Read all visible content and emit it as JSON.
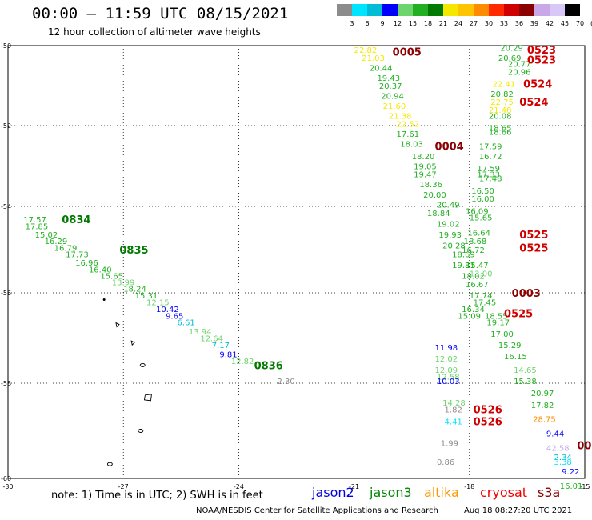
{
  "header": {
    "title": "00:00 – 11:59 UTC 08/15/2021",
    "subtitle": "12 hour collection of altimeter wave heights"
  },
  "color_scale": {
    "labels": [
      "3",
      "6",
      "9",
      "12",
      "15",
      "18",
      "21",
      "24",
      "27",
      "30",
      "33",
      "36",
      "39",
      "42",
      "45",
      "70",
      "(ft)"
    ],
    "colors": [
      "#8c8c8c",
      "#00e5ff",
      "#00bcd4",
      "#0000ff",
      "#6ed46e",
      "#22b022",
      "#007a00",
      "#f5e800",
      "#ffc400",
      "#ff8c00",
      "#ff2a00",
      "#d00000",
      "#8b0000",
      "#c9a8e8",
      "#d8c8f8",
      "#000000"
    ]
  },
  "map": {
    "lat_labels": [
      "-50",
      "-52",
      "-54",
      "-56",
      "-58",
      "-60"
    ],
    "lon_labels": [
      "-30",
      "-27",
      "-24",
      "-21",
      "-18",
      "-15"
    ]
  },
  "passes": [
    {
      "label": "0834",
      "color": "#007a00",
      "lon": -28.6,
      "lat": -54.3
    },
    {
      "label": "0835",
      "color": "#007a00",
      "lon": -27.1,
      "lat": -55.0
    },
    {
      "label": "0836",
      "color": "#007a00",
      "lon": -23.6,
      "lat": -57.6
    },
    {
      "label": "0005",
      "color": "#8b0000",
      "lon": -20.0,
      "lat": -50.15
    },
    {
      "label": "0004",
      "color": "#8b0000",
      "lon": -18.9,
      "lat": -52.5
    },
    {
      "label": "0523",
      "color": "#d00000",
      "lon": -16.5,
      "lat": -50.1
    },
    {
      "label": "0523",
      "color": "#d00000",
      "lon": -16.5,
      "lat": -50.35
    },
    {
      "label": "0524",
      "color": "#d00000",
      "lon": -16.6,
      "lat": -50.95
    },
    {
      "label": "0524",
      "color": "#d00000",
      "lon": -16.7,
      "lat": -51.4
    },
    {
      "label": "0525",
      "color": "#d00000",
      "lon": -16.7,
      "lat": -54.65
    },
    {
      "label": "0525",
      "color": "#d00000",
      "lon": -16.7,
      "lat": -54.95
    },
    {
      "label": "0003",
      "color": "#8b0000",
      "lon": -16.9,
      "lat": -56.0
    },
    {
      "label": "0525",
      "color": "#d00000",
      "lon": -17.1,
      "lat": -56.45
    },
    {
      "label": "0526",
      "color": "#d00000",
      "lon": -17.9,
      "lat": -58.55
    },
    {
      "label": "0526",
      "color": "#d00000",
      "lon": -17.9,
      "lat": -58.8
    },
    {
      "label": "00",
      "color": "#8b0000",
      "lon": -15.2,
      "lat": -59.3
    }
  ],
  "observations": [
    {
      "v": "17.57",
      "c": "#22b022",
      "lon": -29.6,
      "lat": -54.3
    },
    {
      "v": "17.85",
      "c": "#22b022",
      "lon": -29.55,
      "lat": -54.45
    },
    {
      "v": "15.02",
      "c": "#22b022",
      "lon": -29.3,
      "lat": -54.65
    },
    {
      "v": "16.29",
      "c": "#22b022",
      "lon": -29.05,
      "lat": -54.8
    },
    {
      "v": "16.79",
      "c": "#22b022",
      "lon": -28.8,
      "lat": -54.95
    },
    {
      "v": "17.73",
      "c": "#22b022",
      "lon": -28.5,
      "lat": -55.1
    },
    {
      "v": "16.96",
      "c": "#22b022",
      "lon": -28.25,
      "lat": -55.3
    },
    {
      "v": "16.40",
      "c": "#22b022",
      "lon": -27.9,
      "lat": -55.45
    },
    {
      "v": "15.65",
      "c": "#22b022",
      "lon": -27.6,
      "lat": -55.6
    },
    {
      "v": "13.99",
      "c": "#6ed46e",
      "lon": -27.3,
      "lat": -55.75
    },
    {
      "v": "18.24",
      "c": "#22b022",
      "lon": -27.0,
      "lat": -55.9
    },
    {
      "v": "15.31",
      "c": "#22b022",
      "lon": -26.7,
      "lat": -56.05
    },
    {
      "v": "12.15",
      "c": "#6ed46e",
      "lon": -26.4,
      "lat": -56.2
    },
    {
      "v": "10.42",
      "c": "#0000ff",
      "lon": -26.15,
      "lat": -56.35
    },
    {
      "v": "9.65",
      "c": "#0000ff",
      "lon": -25.9,
      "lat": -56.5
    },
    {
      "v": "6.61",
      "c": "#00bcd4",
      "lon": -25.6,
      "lat": -56.65
    },
    {
      "v": "13.94",
      "c": "#6ed46e",
      "lon": -25.3,
      "lat": -56.85
    },
    {
      "v": "12.64",
      "c": "#6ed46e",
      "lon": -25.0,
      "lat": -57.0
    },
    {
      "v": "7.17",
      "c": "#00bcd4",
      "lon": -24.7,
      "lat": -57.15
    },
    {
      "v": "9.81",
      "c": "#0000ff",
      "lon": -24.5,
      "lat": -57.35
    },
    {
      "v": "12.82",
      "c": "#6ed46e",
      "lon": -24.2,
      "lat": -57.5
    },
    {
      "v": "2.30",
      "c": "#8c8c8c",
      "lon": -23.0,
      "lat": -57.95
    },
    {
      "v": "22.82",
      "c": "#f5e800",
      "lon": -21.0,
      "lat": -50.1
    },
    {
      "v": "21.03",
      "c": "#f5e800",
      "lon": -20.8,
      "lat": -50.3
    },
    {
      "v": "20.44",
      "c": "#22b022",
      "lon": -20.6,
      "lat": -50.55
    },
    {
      "v": "19.43",
      "c": "#22b022",
      "lon": -20.4,
      "lat": -50.8
    },
    {
      "v": "20.37",
      "c": "#22b022",
      "lon": -20.35,
      "lat": -51.0
    },
    {
      "v": "20.94",
      "c": "#22b022",
      "lon": -20.3,
      "lat": -51.25
    },
    {
      "v": "21.60",
      "c": "#f5e800",
      "lon": -20.25,
      "lat": -51.5
    },
    {
      "v": "21.38",
      "c": "#f5e800",
      "lon": -20.1,
      "lat": -51.75
    },
    {
      "v": "22.52",
      "c": "#f5e800",
      "lon": -19.9,
      "lat": -51.95
    },
    {
      "v": "17.61",
      "c": "#22b022",
      "lon": -19.9,
      "lat": -52.2
    },
    {
      "v": "18.03",
      "c": "#22b022",
      "lon": -19.8,
      "lat": -52.45
    },
    {
      "v": "18.20",
      "c": "#22b022",
      "lon": -19.5,
      "lat": -52.75
    },
    {
      "v": "19.05",
      "c": "#22b022",
      "lon": -19.45,
      "lat": -53.0
    },
    {
      "v": "19.47",
      "c": "#22b022",
      "lon": -19.45,
      "lat": -53.2
    },
    {
      "v": "18.36",
      "c": "#22b022",
      "lon": -19.3,
      "lat": -53.45
    },
    {
      "v": "20.00",
      "c": "#22b022",
      "lon": -19.2,
      "lat": -53.7
    },
    {
      "v": "20.49",
      "c": "#22b022",
      "lon": -18.85,
      "lat": -53.95
    },
    {
      "v": "18.84",
      "c": "#22b022",
      "lon": -19.1,
      "lat": -54.15
    },
    {
      "v": "19.02",
      "c": "#22b022",
      "lon": -18.85,
      "lat": -54.4
    },
    {
      "v": "19.93",
      "c": "#22b022",
      "lon": -18.8,
      "lat": -54.65
    },
    {
      "v": "20.28",
      "c": "#22b022",
      "lon": -18.7,
      "lat": -54.9
    },
    {
      "v": "18.69",
      "c": "#22b022",
      "lon": -18.45,
      "lat": -55.1
    },
    {
      "v": "19.81",
      "c": "#22b022",
      "lon": -18.45,
      "lat": -55.35
    },
    {
      "v": "18.02",
      "c": "#22b022",
      "lon": -18.2,
      "lat": -55.6
    },
    {
      "v": "20.29",
      "c": "#22b022",
      "lon": -17.2,
      "lat": -50.05
    },
    {
      "v": "20.69",
      "c": "#22b022",
      "lon": -17.25,
      "lat": -50.3
    },
    {
      "v": "20.77",
      "c": "#22b022",
      "lon": -17.0,
      "lat": -50.45
    },
    {
      "v": "20.96",
      "c": "#22b022",
      "lon": -17.0,
      "lat": -50.65
    },
    {
      "v": "22.41",
      "c": "#f5e800",
      "lon": -17.4,
      "lat": -50.95
    },
    {
      "v": "20.82",
      "c": "#22b022",
      "lon": -17.45,
      "lat": -51.2
    },
    {
      "v": "22.75",
      "c": "#f5e800",
      "lon": -17.45,
      "lat": -51.4
    },
    {
      "v": "21.48",
      "c": "#f5e800",
      "lon": -17.5,
      "lat": -51.6
    },
    {
      "v": "20.08",
      "c": "#22b022",
      "lon": -17.5,
      "lat": -51.75
    },
    {
      "v": "18.65",
      "c": "#22b022",
      "lon": -17.5,
      "lat": -52.05
    },
    {
      "v": "18.66",
      "c": "#22b022",
      "lon": -17.5,
      "lat": -52.15
    },
    {
      "v": "17.59",
      "c": "#22b022",
      "lon": -17.75,
      "lat": -52.5
    },
    {
      "v": "16.72",
      "c": "#22b022",
      "lon": -17.75,
      "lat": -52.75
    },
    {
      "v": "17.59",
      "c": "#22b022",
      "lon": -17.8,
      "lat": -53.05
    },
    {
      "v": "17.33",
      "c": "#22b022",
      "lon": -17.8,
      "lat": -53.2
    },
    {
      "v": "17.48",
      "c": "#22b022",
      "lon": -17.75,
      "lat": -53.3
    },
    {
      "v": "16.50",
      "c": "#22b022",
      "lon": -17.95,
      "lat": -53.6
    },
    {
      "v": "16.00",
      "c": "#22b022",
      "lon": -17.95,
      "lat": -53.8
    },
    {
      "v": "16.09",
      "c": "#22b022",
      "lon": -18.1,
      "lat": -54.1
    },
    {
      "v": "15.65",
      "c": "#22b022",
      "lon": -18.0,
      "lat": -54.25
    },
    {
      "v": "16.64",
      "c": "#22b022",
      "lon": -18.05,
      "lat": -54.6
    },
    {
      "v": "18.68",
      "c": "#22b022",
      "lon": -18.15,
      "lat": -54.8
    },
    {
      "v": "16.72",
      "c": "#22b022",
      "lon": -18.2,
      "lat": -55.0
    },
    {
      "v": "15.47",
      "c": "#22b022",
      "lon": -18.1,
      "lat": -55.35
    },
    {
      "v": "13.00",
      "c": "#6ed46e",
      "lon": -18.0,
      "lat": -55.55
    },
    {
      "v": "16.67",
      "c": "#22b022",
      "lon": -18.1,
      "lat": -55.8
    },
    {
      "v": "17.74",
      "c": "#22b022",
      "lon": -18.0,
      "lat": -56.05
    },
    {
      "v": "17.45",
      "c": "#22b022",
      "lon": -17.9,
      "lat": -56.2
    },
    {
      "v": "16.34",
      "c": "#22b022",
      "lon": -18.2,
      "lat": -56.35
    },
    {
      "v": "15.09",
      "c": "#22b022",
      "lon": -18.3,
      "lat": -56.5
    },
    {
      "v": "18.55",
      "c": "#22b022",
      "lon": -17.6,
      "lat": -56.5
    },
    {
      "v": "19.17",
      "c": "#22b022",
      "lon": -17.55,
      "lat": -56.65
    },
    {
      "v": "17.00",
      "c": "#22b022",
      "lon": -17.45,
      "lat": -56.9
    },
    {
      "v": "15.29",
      "c": "#22b022",
      "lon": -17.25,
      "lat": -57.15
    },
    {
      "v": "16.15",
      "c": "#22b022",
      "lon": -17.1,
      "lat": -57.4
    },
    {
      "v": "14.65",
      "c": "#6ed46e",
      "lon": -16.85,
      "lat": -57.7
    },
    {
      "v": "15.38",
      "c": "#22b022",
      "lon": -16.85,
      "lat": -57.95
    },
    {
      "v": "20.97",
      "c": "#22b022",
      "lon": -16.4,
      "lat": -58.2
    },
    {
      "v": "17.82",
      "c": "#22b022",
      "lon": -16.4,
      "lat": -58.45
    },
    {
      "v": "28.75",
      "c": "#ff8c00",
      "lon": -16.35,
      "lat": -58.75
    },
    {
      "v": "9.44",
      "c": "#0000ff",
      "lon": -16.0,
      "lat": -59.05
    },
    {
      "v": "42.58",
      "c": "#c9a8e8",
      "lon": -16.0,
      "lat": -59.35
    },
    {
      "v": "2.34",
      "c": "#00bcd4",
      "lon": -15.8,
      "lat": -59.55
    },
    {
      "v": "3.38",
      "c": "#00e5ff",
      "lon": -15.8,
      "lat": -59.65
    },
    {
      "v": "9.22",
      "c": "#0000ff",
      "lon": -15.6,
      "lat": -59.85
    },
    {
      "v": "16.01",
      "c": "#22b022",
      "lon": -15.65,
      "lat": -60.15
    },
    {
      "v": "11.98",
      "c": "#0000ff",
      "lon": -18.9,
      "lat": -57.2
    },
    {
      "v": "12.02",
      "c": "#6ed46e",
      "lon": -18.9,
      "lat": -57.45
    },
    {
      "v": "12.09",
      "c": "#6ed46e",
      "lon": -18.9,
      "lat": -57.7
    },
    {
      "v": "12.58",
      "c": "#6ed46e",
      "lon": -18.85,
      "lat": -57.85
    },
    {
      "v": "10.03",
      "c": "#0000ff",
      "lon": -18.85,
      "lat": -57.95
    },
    {
      "v": "14.28",
      "c": "#6ed46e",
      "lon": -18.7,
      "lat": -58.4
    },
    {
      "v": "1.82",
      "c": "#8c8c8c",
      "lon": -18.65,
      "lat": -58.55
    },
    {
      "v": "4.41",
      "c": "#00e5ff",
      "lon": -18.65,
      "lat": -58.8
    },
    {
      "v": "1.99",
      "c": "#8c8c8c",
      "lon": -18.75,
      "lat": -59.25
    },
    {
      "v": "0.86",
      "c": "#8c8c8c",
      "lon": -18.85,
      "lat": -59.65
    }
  ],
  "footer": {
    "note": "note: 1) Time is in UTC; 2) SWH is in feet",
    "satellites": [
      {
        "name": "jason2",
        "color": "#0000dd"
      },
      {
        "name": "jason3",
        "color": "#008800"
      },
      {
        "name": "altika",
        "color": "#ff9900"
      },
      {
        "name": "cryosat",
        "color": "#ee0000"
      },
      {
        "name": "s3a",
        "color": "#8b0000"
      }
    ],
    "credit": "NOAA/NESDIS Center for Satellite Applications and Research",
    "timestamp": "Aug 18 08:27:20 UTC 2021"
  }
}
